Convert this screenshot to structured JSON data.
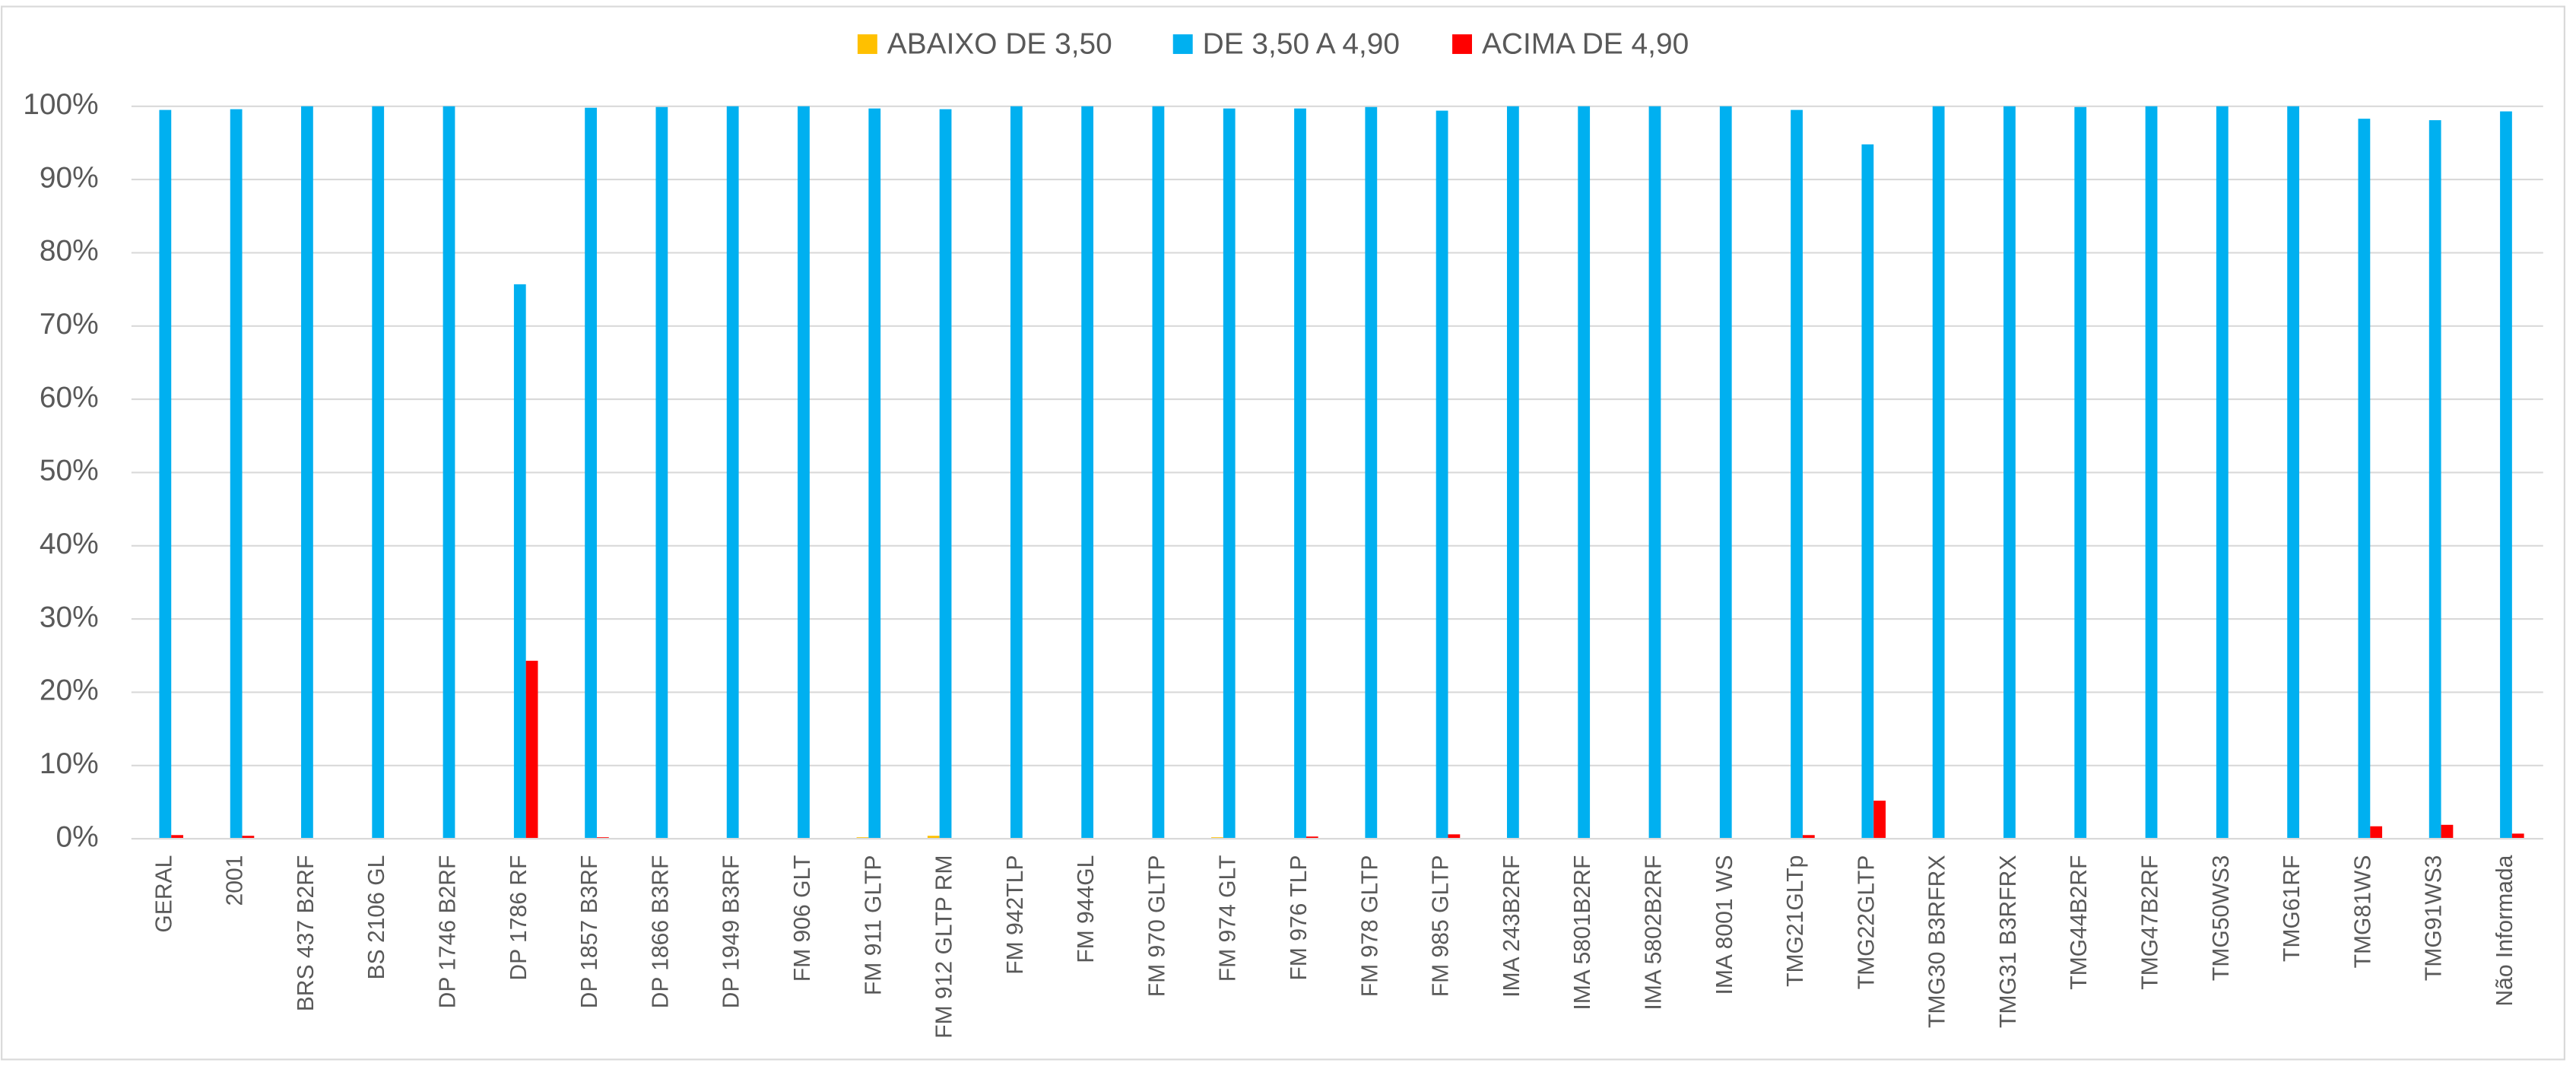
{
  "chart_data": {
    "type": "bar",
    "categories": [
      "GERAL",
      "2001",
      "BRS 437 B2RF",
      "BS 2106 GL",
      "DP 1746 B2RF",
      "DP 1786 RF",
      "DP 1857 B3RF",
      "DP 1866 B3RF",
      "DP 1949 B3RF",
      "FM 906 GLT",
      "FM 911 GLTP",
      "FM 912 GLTP RM",
      "FM 942TLP",
      "FM 944GL",
      "FM 970 GLTP",
      "FM 974 GLT",
      "FM 976 TLP",
      "FM 978 GLTP",
      "FM 985 GLTP",
      "IMA 243B2RF",
      "IMA 5801B2RF",
      "IMA 5802B2RF",
      "IMA 8001 WS",
      "TMG21GLTp",
      "TMG22GLTP",
      "TMG30 B3RFRX",
      "TMG31 B3RFRX",
      "TMG44B2RF",
      "TMG47B2RF",
      "TMG50WS3",
      "TMG61RF",
      "TMG81WS",
      "TMG91WS3",
      "Não Informada"
    ],
    "series": [
      {
        "name": "ABAIXO DE 3,50",
        "color": "#ffc000",
        "values": [
          0,
          0,
          0,
          0,
          0,
          0,
          0,
          0,
          0,
          0,
          0.2,
          0.4,
          0,
          0,
          0,
          0.2,
          0,
          0,
          0,
          0,
          0,
          0,
          0,
          0,
          0,
          0,
          0,
          0,
          0,
          0,
          0,
          0,
          0,
          0
        ]
      },
      {
        "name": "DE 3,50 A 4,90",
        "color": "#00b0f0",
        "values": [
          99.5,
          99.6,
          100,
          100,
          100,
          75.7,
          99.8,
          99.9,
          100,
          100,
          99.7,
          99.6,
          100,
          100,
          100,
          99.7,
          99.7,
          99.9,
          99.4,
          100,
          100,
          100,
          100,
          99.5,
          94.8,
          100,
          100,
          99.9,
          100,
          100,
          100,
          98.3,
          98.1,
          99.3
        ]
      },
      {
        "name": "ACIMA DE 4,90",
        "color": "#ff0000",
        "values": [
          0.5,
          0.4,
          0,
          0,
          0,
          24.3,
          0.2,
          0.1,
          0,
          0,
          0.1,
          0,
          0,
          0,
          0,
          0.1,
          0.3,
          0.1,
          0.6,
          0,
          0,
          0,
          0,
          0.5,
          5.2,
          0,
          0,
          0.1,
          0,
          0,
          0,
          1.7,
          1.9,
          0.7
        ]
      }
    ],
    "ylim": [
      0,
      100
    ],
    "yticks": [
      {
        "value": 0,
        "label": "0%"
      },
      {
        "value": 10,
        "label": "10%"
      },
      {
        "value": 20,
        "label": "20%"
      },
      {
        "value": 30,
        "label": "30%"
      },
      {
        "value": 40,
        "label": "40%"
      },
      {
        "value": 50,
        "label": "50%"
      },
      {
        "value": 60,
        "label": "60%"
      },
      {
        "value": 70,
        "label": "70%"
      },
      {
        "value": 80,
        "label": "80%"
      },
      {
        "value": 90,
        "label": "90%"
      },
      {
        "value": 100,
        "label": "100%"
      }
    ],
    "grid": true,
    "legend": "top"
  }
}
